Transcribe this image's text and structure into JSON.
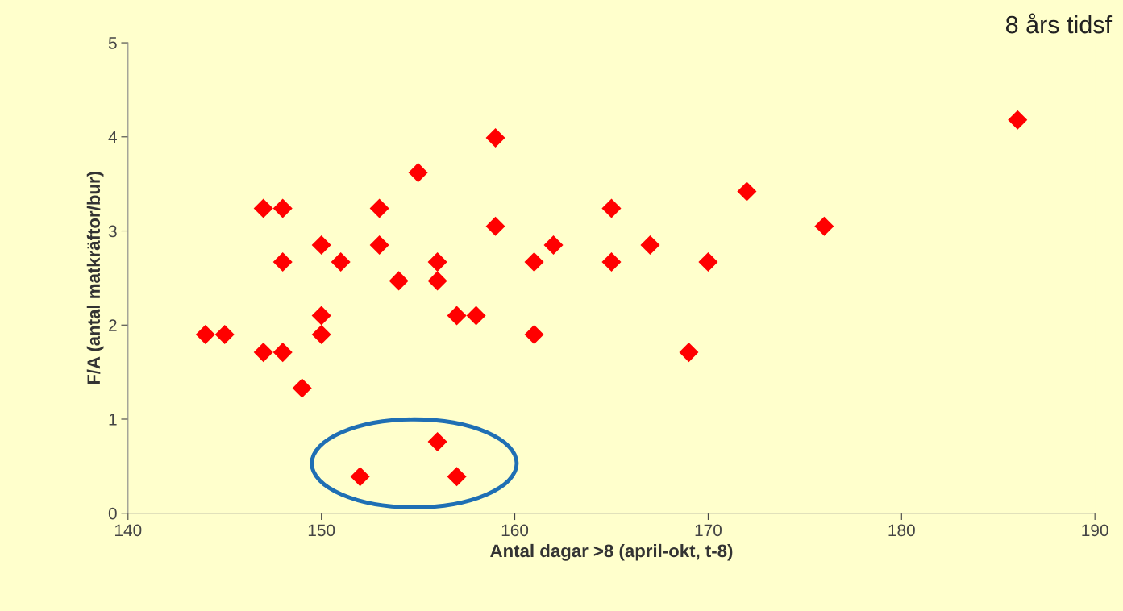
{
  "chart_data": {
    "type": "scatter",
    "xlabel": "Antal dagar >8 (april-okt, t-8)",
    "ylabel": "F/A (antal matkräftor/bur)",
    "annotations": [
      "8 års tidsf"
    ],
    "x": [
      186,
      144,
      145,
      147,
      148,
      147,
      148,
      148,
      149,
      150,
      150,
      150,
      151,
      153,
      153,
      154,
      155,
      156,
      156,
      157,
      158,
      159,
      159,
      161,
      161,
      162,
      165,
      165,
      167,
      169,
      170,
      172,
      176,
      152,
      156,
      157
    ],
    "series": [
      {
        "color": "#ff0000",
        "values": [
          4.18,
          1.9,
          1.9,
          3.24,
          3.24,
          1.71,
          1.71,
          2.67,
          1.33,
          2.85,
          2.1,
          1.9,
          2.67,
          3.24,
          2.85,
          2.47,
          3.62,
          2.67,
          2.47,
          2.1,
          2.1,
          3.99,
          3.05,
          2.67,
          1.9,
          2.85,
          3.24,
          2.67,
          2.85,
          1.71,
          2.67,
          3.42,
          3.05,
          0.39,
          0.76,
          0.39
        ]
      }
    ],
    "xlim": [
      140,
      190
    ],
    "xticks": [
      140,
      150,
      160,
      170,
      180,
      190
    ],
    "ylim": [
      0,
      5
    ],
    "yticks": [
      0,
      1,
      2,
      3,
      4,
      5
    ],
    "marker": "diamond",
    "grid": false,
    "legend": false
  }
}
